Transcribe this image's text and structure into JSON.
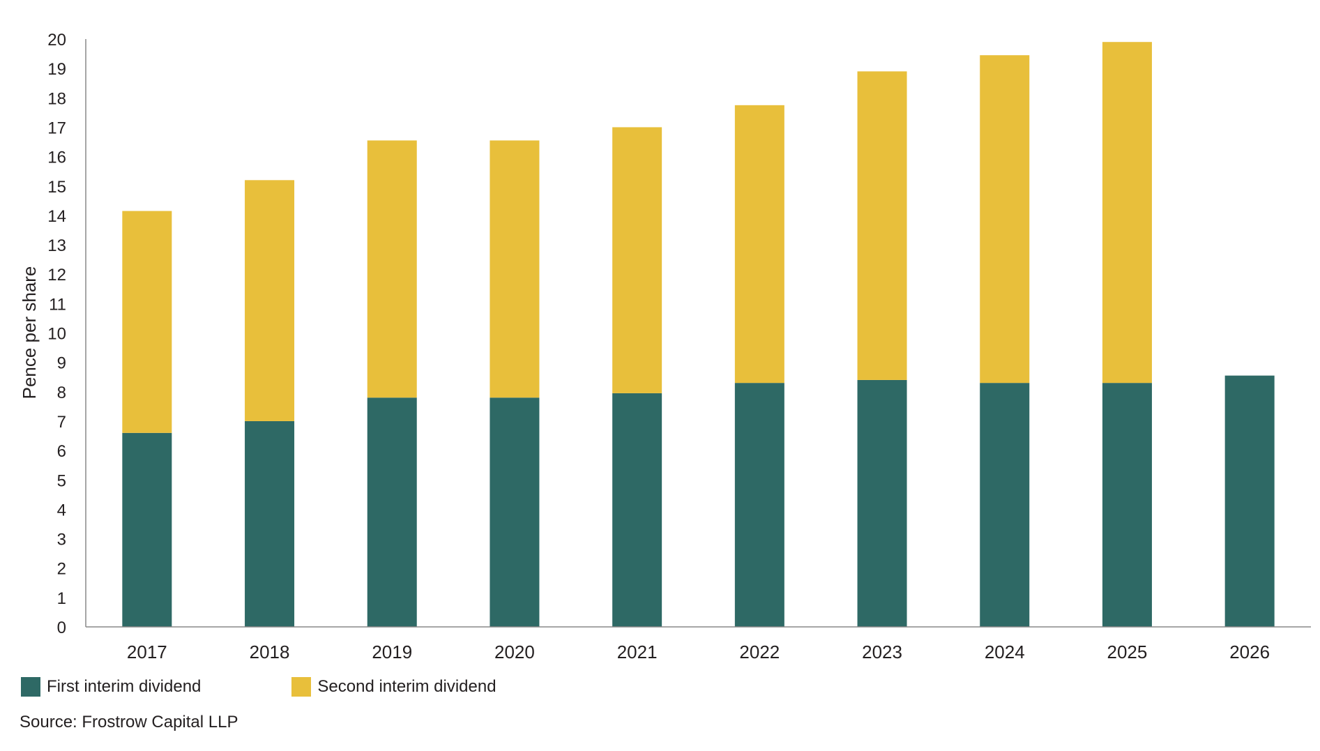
{
  "chart_data": {
    "type": "bar",
    "stacked": true,
    "categories": [
      "2017",
      "2018",
      "2019",
      "2020",
      "2021",
      "2022",
      "2023",
      "2024",
      "2025",
      "2026"
    ],
    "series": [
      {
        "name": "First interim dividend",
        "color": "#2e6965",
        "values": [
          6.6,
          7.0,
          7.8,
          7.8,
          7.95,
          8.3,
          8.4,
          8.3,
          8.3,
          8.55
        ]
      },
      {
        "name": "Second interim dividend",
        "color": "#e8bf3b",
        "values": [
          7.55,
          8.2,
          8.75,
          8.75,
          9.05,
          9.45,
          10.5,
          11.15,
          11.6,
          0
        ]
      }
    ],
    "ylabel": "Pence per share",
    "xlabel": "",
    "ylim": [
      0,
      20
    ],
    "yticks": [
      0,
      1,
      2,
      3,
      4,
      5,
      6,
      7,
      8,
      9,
      10,
      11,
      12,
      13,
      14,
      15,
      16,
      17,
      18,
      19,
      20
    ],
    "grid": false,
    "legend_position": "bottom-left"
  },
  "source": "Source: Frostrow Capital LLP"
}
